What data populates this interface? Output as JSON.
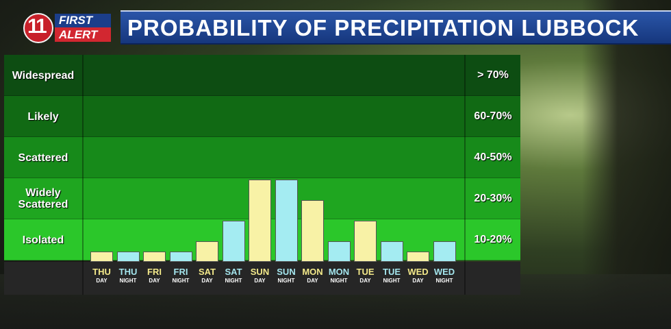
{
  "logo": {
    "number": "11",
    "first": "FIRST",
    "alert": "ALERT"
  },
  "header": {
    "title": "PROBABILITY OF PRECIPITATION LUBBOCK"
  },
  "colors": {
    "bands": [
      "#0d4d12",
      "#116a14",
      "#178a1a",
      "#1fa620",
      "#2bc72a"
    ],
    "day_bar": "#f8f2a6",
    "night_bar": "#a4ecf2"
  },
  "chart_data": {
    "type": "bar",
    "title": "PROBABILITY OF PRECIPITATION LUBBOCK",
    "categories": [
      {
        "day": "THU",
        "period": "DAY"
      },
      {
        "day": "THU",
        "period": "NIGHT"
      },
      {
        "day": "FRI",
        "period": "DAY"
      },
      {
        "day": "FRI",
        "period": "NIGHT"
      },
      {
        "day": "SAT",
        "period": "DAY"
      },
      {
        "day": "SAT",
        "period": "NIGHT"
      },
      {
        "day": "SUN",
        "period": "DAY"
      },
      {
        "day": "SUN",
        "period": "NIGHT"
      },
      {
        "day": "MON",
        "period": "DAY"
      },
      {
        "day": "MON",
        "period": "NIGHT"
      },
      {
        "day": "TUE",
        "period": "DAY"
      },
      {
        "day": "TUE",
        "period": "NIGHT"
      },
      {
        "day": "WED",
        "period": "DAY"
      },
      {
        "day": "WED",
        "period": "NIGHT"
      }
    ],
    "values": [
      0.5,
      0.5,
      0.5,
      0.5,
      1,
      2,
      4,
      4,
      3,
      1,
      2,
      1,
      0.5,
      1
    ],
    "ylim": [
      0,
      6
    ],
    "bands": [
      {
        "label": "Widespread",
        "range": "> 70%"
      },
      {
        "label": "Likely",
        "range": "60-70%"
      },
      {
        "label": "Scattered",
        "range": "40-50%"
      },
      {
        "label": "Widely Scattered",
        "range": "20-30%"
      },
      {
        "label": "Isolated",
        "range": "10-20%"
      }
    ]
  }
}
